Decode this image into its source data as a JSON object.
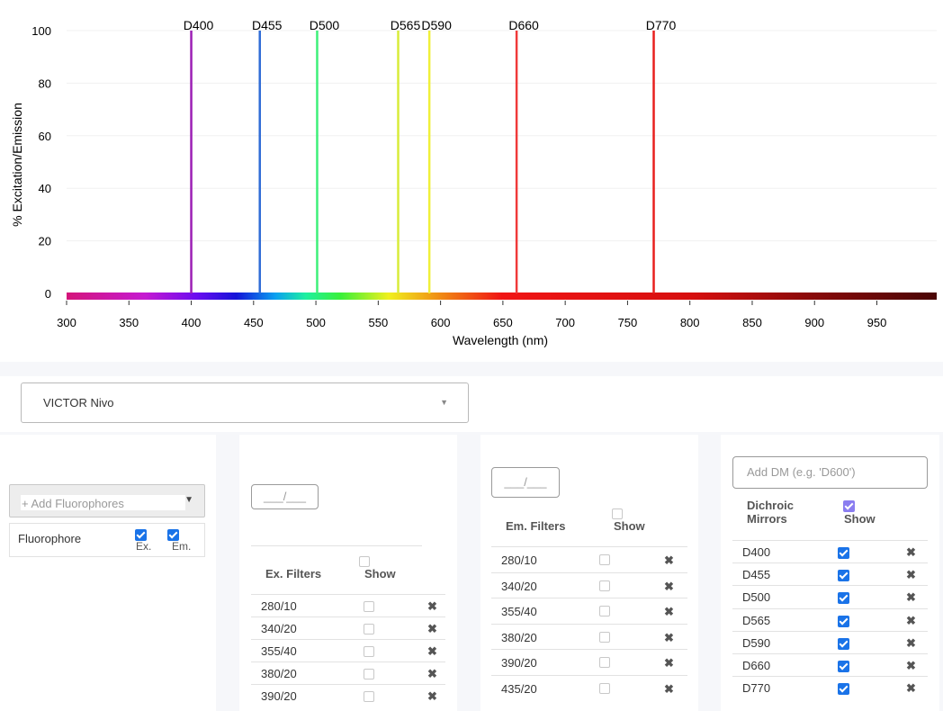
{
  "chart_data": {
    "type": "line",
    "ylabel": "% Excitation/Emission",
    "xlabel": "Wavelength (nm)",
    "xlim": [
      300,
      998
    ],
    "ylim": [
      0,
      100
    ],
    "y_ticks": [
      0,
      20,
      40,
      60,
      80,
      100
    ],
    "x_ticks": [
      300,
      350,
      400,
      450,
      500,
      550,
      600,
      650,
      700,
      750,
      800,
      850,
      900,
      950
    ],
    "grid": true,
    "series": [
      {
        "name": "D400",
        "x": 400,
        "y": 100,
        "color": "#9b1fb5"
      },
      {
        "name": "D455",
        "x": 455,
        "y": 100,
        "color": "#2f6cd6"
      },
      {
        "name": "D500",
        "x": 501,
        "y": 100,
        "color": "#3ef07a"
      },
      {
        "name": "D565",
        "x": 566,
        "y": 100,
        "color": "#d8ec3a"
      },
      {
        "name": "D590",
        "x": 591,
        "y": 100,
        "color": "#f0f03a"
      },
      {
        "name": "D660",
        "x": 661,
        "y": 100,
        "color": "#f03a3a"
      },
      {
        "name": "D770",
        "x": 771,
        "y": 100,
        "color": "#e8201e"
      }
    ]
  },
  "instrument": {
    "value": "VICTOR Nivo"
  },
  "fluorophores": {
    "add_placeholder": "+ Add Fluorophores",
    "col_name": "Fluorophore",
    "col_ex": "Ex.",
    "col_em": "Em."
  },
  "ex_filters": {
    "ratio_placeholder": "___/___",
    "header": "Ex. Filters",
    "show": "Show",
    "rows": [
      "280/10",
      "340/20",
      "355/40",
      "380/20",
      "390/20"
    ]
  },
  "em_filters": {
    "ratio_placeholder": "___/___",
    "header": "Em. Filters",
    "show": "Show",
    "rows": [
      "280/10",
      "340/20",
      "355/40",
      "380/20",
      "390/20",
      "435/20"
    ]
  },
  "dichroics": {
    "add_placeholder": "Add DM (e.g. 'D600')",
    "header_line1": "Dichroic",
    "header_line2": "Mirrors",
    "show": "Show",
    "rows": [
      "D400",
      "D455",
      "D500",
      "D565",
      "D590",
      "D660",
      "D770"
    ]
  }
}
